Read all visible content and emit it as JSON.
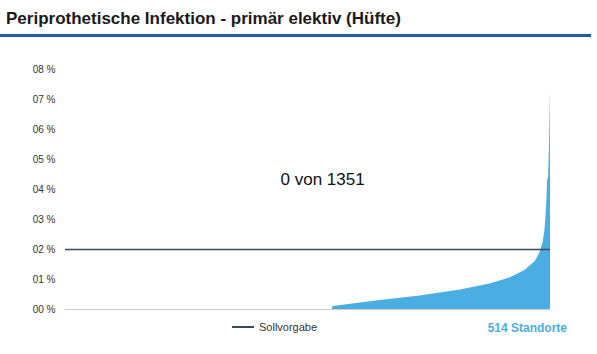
{
  "chart_data": {
    "type": "area",
    "title": "Periprothetische Infektion - primär elektiv (Hüfte)",
    "x": [
      1,
      283,
      284,
      334,
      376,
      419,
      450,
      471,
      487,
      498,
      503,
      506,
      508,
      509,
      510,
      511,
      512,
      513,
      514
    ],
    "values": [
      0,
      0,
      0.1,
      0.3,
      0.45,
      0.65,
      0.85,
      1.05,
      1.3,
      1.6,
      1.9,
      2.2,
      2.6,
      3.0,
      3.5,
      4.3,
      4.4,
      5.5,
      7.3
    ],
    "color": "#4aaee3",
    "xlim": [
      1,
      514
    ],
    "ylim": [
      0,
      8
    ],
    "yticks": [
      {
        "value": 0,
        "label": "00 %"
      },
      {
        "value": 1,
        "label": "01 %"
      },
      {
        "value": 2,
        "label": "02 %"
      },
      {
        "value": 3,
        "label": "03 %"
      },
      {
        "value": 4,
        "label": "04 %"
      },
      {
        "value": 5,
        "label": "05 %"
      },
      {
        "value": 6,
        "label": "06 %"
      },
      {
        "value": 7,
        "label": "07 %"
      },
      {
        "value": 8,
        "label": "08 %"
      }
    ],
    "tick_labels": "y",
    "grid": false,
    "reference_line": {
      "name": "Sollvorgabe",
      "value": 2,
      "color": "#3c4a5c"
    },
    "legend": "bottom",
    "annotation": "0 von 1351",
    "caption": {
      "text": "514 Standorte",
      "color": "#4aaee3"
    }
  }
}
